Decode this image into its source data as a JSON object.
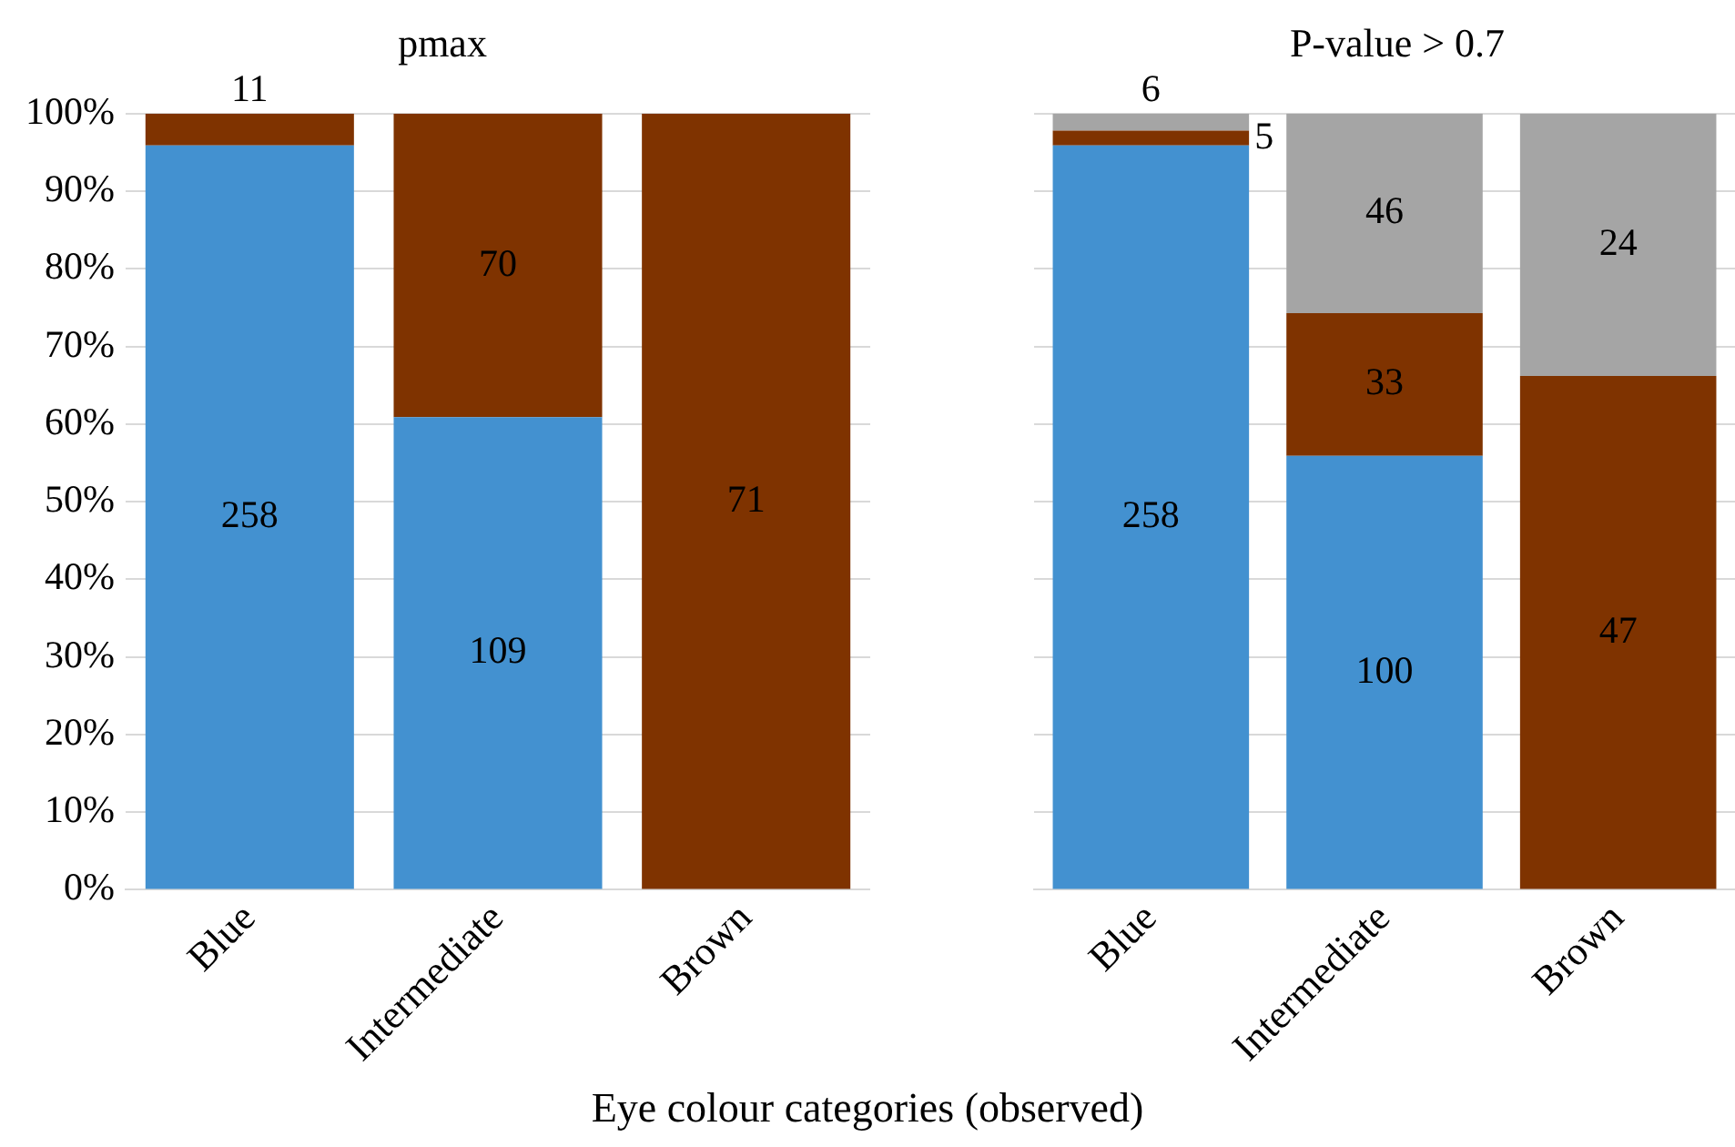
{
  "chart_data": [
    {
      "type": "bar",
      "title": "pmax",
      "xlabel": "Eye colour categories (observed)",
      "categories": [
        "Blue",
        "Intermediate",
        "Brown"
      ],
      "stacked": true,
      "ylim": [
        0,
        100
      ],
      "yticks": [
        {
          "value": 0,
          "label": "0%"
        },
        {
          "value": 10,
          "label": "10%"
        },
        {
          "value": 20,
          "label": "20%"
        },
        {
          "value": 30,
          "label": "30%"
        },
        {
          "value": 40,
          "label": "40%"
        },
        {
          "value": 50,
          "label": "50%"
        },
        {
          "value": 60,
          "label": "60%"
        },
        {
          "value": 70,
          "label": "70%"
        },
        {
          "value": 80,
          "label": "80%"
        },
        {
          "value": 90,
          "label": "90%"
        },
        {
          "value": 100,
          "label": "100%"
        }
      ],
      "grid": "y",
      "legend": false,
      "series": [
        {
          "color": "#4391d0",
          "values": [
            95.9,
            60.9,
            0
          ]
        },
        {
          "color": "#7f3300",
          "values": [
            4.1,
            39.1,
            100
          ]
        }
      ],
      "annotations": [
        "258",
        "11",
        "109",
        "70",
        "71"
      ]
    },
    {
      "type": "bar",
      "title": "P-value > 0.7",
      "categories": [
        "Blue",
        "Intermediate",
        "Brown"
      ],
      "stacked": true,
      "ylim": [
        0,
        100
      ],
      "yticks": [
        0,
        10,
        20,
        30,
        40,
        50,
        60,
        70,
        80,
        90,
        100
      ],
      "tick_labels": "x",
      "grid": "y",
      "legend": false,
      "series": [
        {
          "color": "#4391d0",
          "values": [
            95.9,
            55.9,
            0
          ]
        },
        {
          "color": "#7f3300",
          "values": [
            1.9,
            18.4,
            66.2
          ]
        },
        {
          "color": "#a5a5a5",
          "values": [
            2.2,
            25.7,
            33.8
          ]
        }
      ],
      "annotations": [
        "258",
        "5",
        "6",
        "100",
        "33",
        "46",
        "47",
        "24"
      ]
    }
  ]
}
